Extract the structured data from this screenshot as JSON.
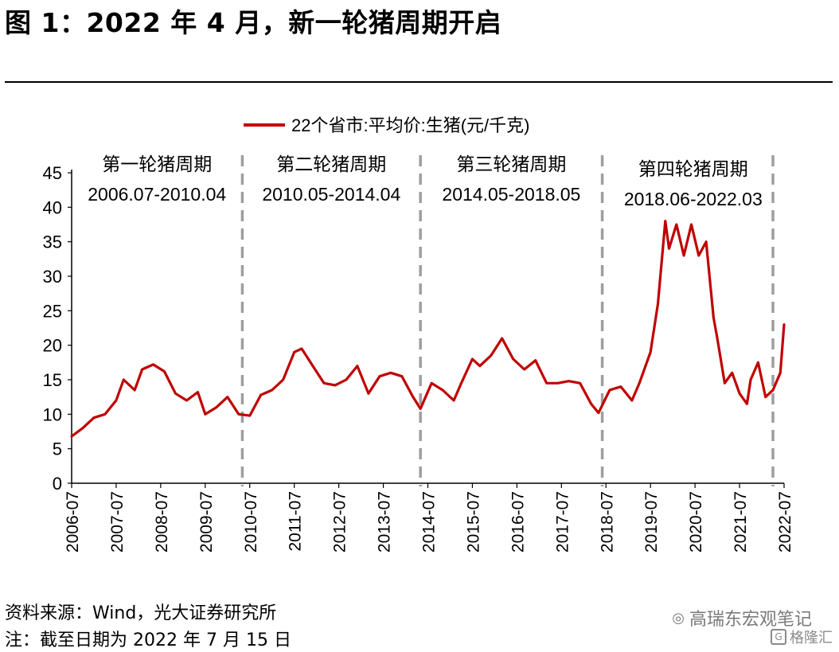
{
  "figure": {
    "title": "图 1：2022 年 4 月，新一轮猪周期开启",
    "source": "资料来源：Wind，光大证券研究所",
    "note": "注：截至日期为 2022 年 7 月 15 日"
  },
  "watermark": {
    "line1": "高瑞东宏观笔记",
    "line2": "格隆汇"
  },
  "colors": {
    "series": "#c00000",
    "divider": "#9e9e9e",
    "axis": "#000000"
  },
  "chart_data": {
    "type": "line",
    "title": "",
    "legend": {
      "position": "top-center"
    },
    "ylim": [
      0,
      45
    ],
    "yticks": [
      0,
      5,
      10,
      15,
      20,
      25,
      30,
      35,
      40,
      45
    ],
    "xlim": [
      "2006-07",
      "2022-07"
    ],
    "xticks": [
      "2006-07",
      "2007-07",
      "2008-07",
      "2009-07",
      "2010-07",
      "2011-07",
      "2012-07",
      "2013-07",
      "2014-07",
      "2015-07",
      "2016-07",
      "2017-07",
      "2018-07",
      "2019-07",
      "2020-07",
      "2021-07",
      "2022-07"
    ],
    "grid": false,
    "series": [
      {
        "name": "22个省市:平均价:生猪(元/千克)",
        "x": [
          "2006-07",
          "2006-10",
          "2007-01",
          "2007-04",
          "2007-07",
          "2007-09",
          "2007-12",
          "2008-02",
          "2008-05",
          "2008-08",
          "2008-11",
          "2009-02",
          "2009-05",
          "2009-07",
          "2009-10",
          "2010-01",
          "2010-04",
          "2010-07",
          "2010-10",
          "2011-01",
          "2011-04",
          "2011-07",
          "2011-09",
          "2011-12",
          "2012-03",
          "2012-06",
          "2012-09",
          "2012-12",
          "2013-03",
          "2013-06",
          "2013-09",
          "2013-12",
          "2014-03",
          "2014-05",
          "2014-08",
          "2014-11",
          "2015-02",
          "2015-04",
          "2015-07",
          "2015-09",
          "2015-12",
          "2016-03",
          "2016-06",
          "2016-09",
          "2016-12",
          "2017-03",
          "2017-06",
          "2017-09",
          "2017-12",
          "2018-03",
          "2018-05",
          "2018-08",
          "2018-11",
          "2019-02",
          "2019-04",
          "2019-07",
          "2019-09",
          "2019-11",
          "2019-12",
          "2020-02",
          "2020-04",
          "2020-06",
          "2020-08",
          "2020-10",
          "2020-12",
          "2021-01",
          "2021-03",
          "2021-05",
          "2021-07",
          "2021-09",
          "2021-10",
          "2021-12",
          "2022-02",
          "2022-04",
          "2022-06",
          "2022-07"
        ],
        "values": [
          6.8,
          8.0,
          9.5,
          10.0,
          12.0,
          15.0,
          13.5,
          16.5,
          17.2,
          16.2,
          13.0,
          12.0,
          13.2,
          10.0,
          11.0,
          12.5,
          10.0,
          9.8,
          12.8,
          13.5,
          15.0,
          19.0,
          19.5,
          17.0,
          14.5,
          14.2,
          15.0,
          17.0,
          13.0,
          15.5,
          16.0,
          15.5,
          12.5,
          10.8,
          14.5,
          13.5,
          12.0,
          14.5,
          18.0,
          17.0,
          18.5,
          21.0,
          18.0,
          16.5,
          17.8,
          14.5,
          14.5,
          14.8,
          14.5,
          11.5,
          10.2,
          13.5,
          14.0,
          12.0,
          14.5,
          19.0,
          26.0,
          38.0,
          34.0,
          37.5,
          33.0,
          37.5,
          33.0,
          35.0,
          24.0,
          21.0,
          14.5,
          16.0,
          13.0,
          11.5,
          15.0,
          17.5,
          12.5,
          13.5,
          16.0,
          23.0
        ]
      }
    ],
    "cycles": [
      {
        "label": "第一轮猪周期",
        "range": "2006.07-2010.04",
        "start": "2006-07"
      },
      {
        "label": "第二轮猪周期",
        "range": "2010.05-2014.04",
        "start": "2010-05"
      },
      {
        "label": "第三轮猪周期",
        "range": "2014.05-2018.05",
        "start": "2014-05"
      },
      {
        "label": "第四轮猪周期",
        "range": "2018.06-2022.03",
        "start": "2018-06"
      }
    ],
    "dividers": [
      "2010-05",
      "2014-05",
      "2018-06",
      "2022-04"
    ]
  }
}
